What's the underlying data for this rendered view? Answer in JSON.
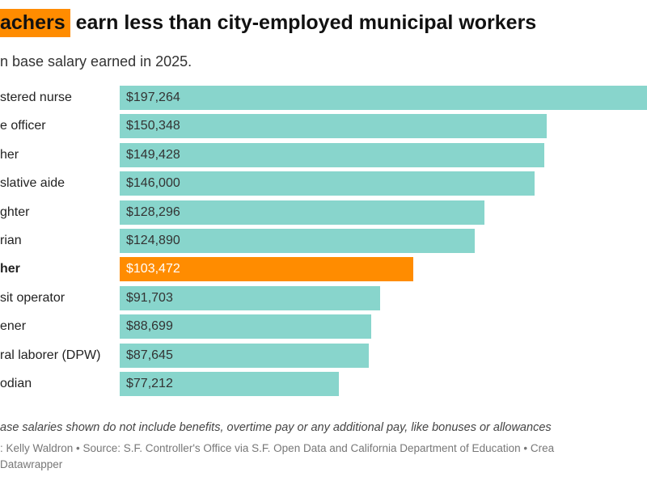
{
  "title": {
    "highlight": "achers",
    "rest": " earn less than city-employed municipal workers"
  },
  "subtitle": "n base salary earned in 2025.",
  "colors": {
    "bar": "#88d5cc",
    "highlight": "#ff8c00"
  },
  "chart_data": {
    "type": "bar",
    "orientation": "horizontal",
    "categories": [
      "stered nurse",
      "e officer",
      "her",
      "slative aide",
      "ghter",
      "rian",
      "her",
      "sit operator",
      "ener",
      "ral laborer (DPW)",
      "odian"
    ],
    "values": [
      197264,
      150348,
      149428,
      146000,
      128296,
      124890,
      103472,
      91703,
      88699,
      87645,
      77212
    ],
    "value_labels": [
      "$197,264",
      "$150,348",
      "$149,428",
      "$146,000",
      "$128,296",
      "$124,890",
      "$103,472",
      "$91,703",
      "$88,699",
      "$87,645",
      "$77,212"
    ],
    "highlighted_index": 6
  },
  "note": "ase salaries shown do not include benefits, overtime pay or any additional pay, like bonuses or allowances",
  "credit_line1": ": Kelly Waldron • Source: S.F. Controller's Office via S.F. Open Data and California Department of Education • Crea",
  "credit_line2": "Datawrapper"
}
